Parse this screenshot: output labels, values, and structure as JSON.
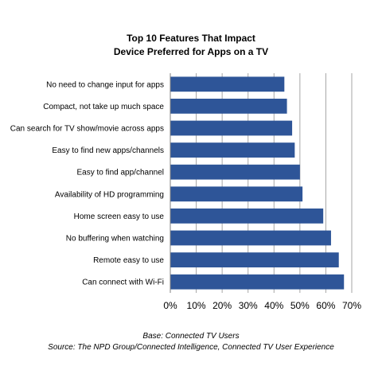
{
  "chart_data": {
    "type": "bar",
    "orientation": "horizontal",
    "title_lines": [
      "Top 10 Features That Impact",
      "Device Preferred for Apps on a TV"
    ],
    "categories": [
      "No need to change input for apps",
      "Compact, not take up much space",
      "Can search for TV show/movie across apps",
      "Easy to find new apps/channels",
      "Easy to find app/channel",
      "Availability of HD programming",
      "Home screen easy to use",
      "No buffering when watching",
      "Remote easy to use",
      "Can connect with Wi-Fi"
    ],
    "values": [
      44,
      45,
      47,
      48,
      50,
      51,
      59,
      62,
      65,
      67
    ],
    "unit": "%",
    "xlim": [
      0,
      70
    ],
    "x_ticks": [
      "0%",
      "10%",
      "20%",
      "30%",
      "40%",
      "50%",
      "60%",
      "70%"
    ],
    "grid": true,
    "bar_color": "#2E5598"
  },
  "footnotes": {
    "base": "Base: Connected TV Users",
    "source": "Source: The NPD Group/Connected Intelligence, Connected TV User Experience"
  }
}
